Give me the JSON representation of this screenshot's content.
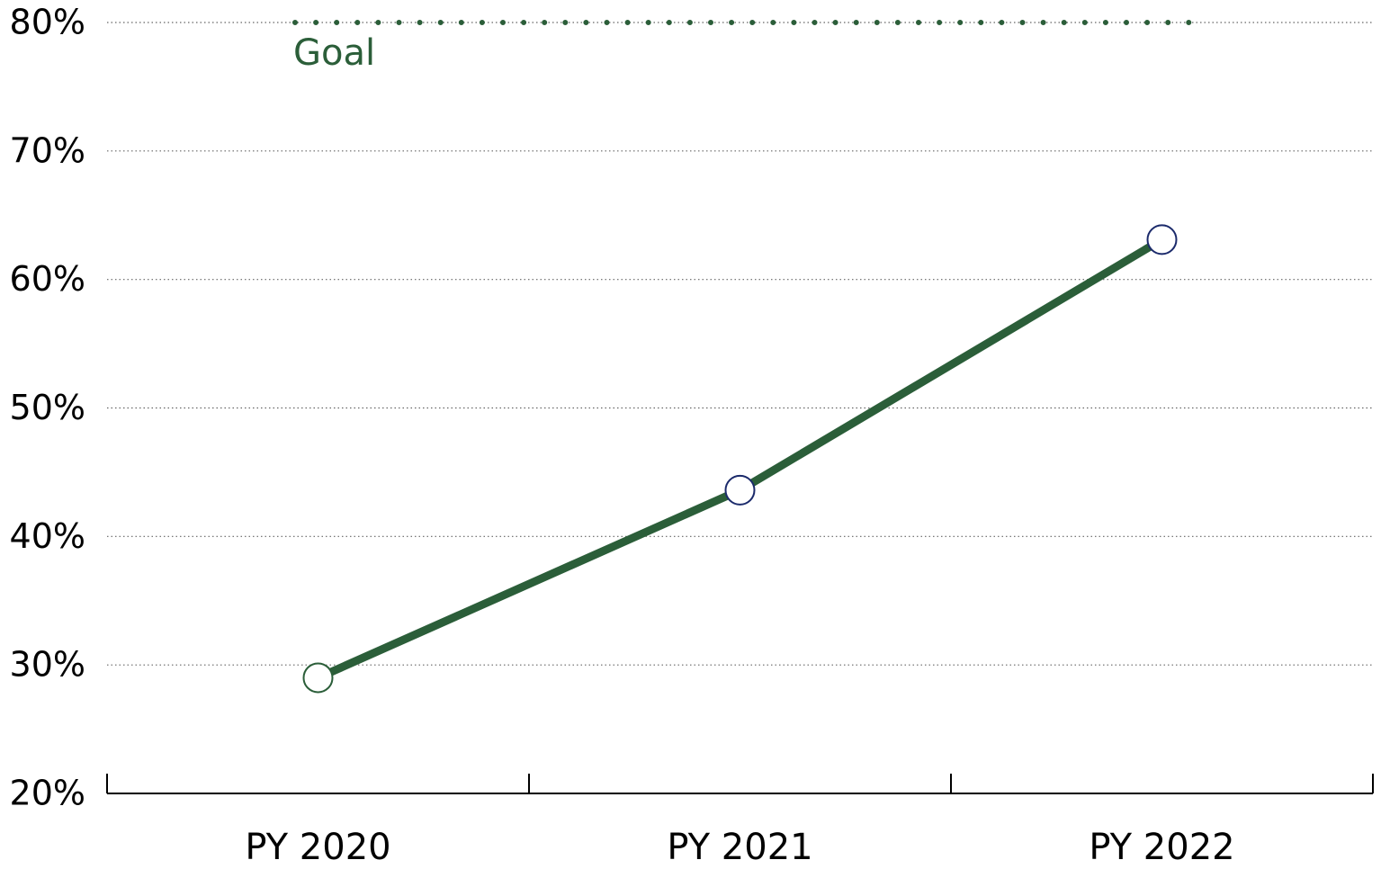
{
  "chart_data": {
    "type": "line",
    "categories": [
      "PY 2020",
      "PY 2021",
      "PY 2022"
    ],
    "series": [
      {
        "color": "#2b5e39",
        "marker_edgecolors": [
          "#2b5e39",
          "#1b2a6b",
          "#1b2a6b"
        ],
        "values": [
          29,
          43.6,
          63.1
        ]
      }
    ],
    "ylim": [
      20,
      80
    ],
    "yticks": [
      {
        "value": 20,
        "label": "20%"
      },
      {
        "value": 30,
        "label": "30%"
      },
      {
        "value": 40,
        "label": "40%"
      },
      {
        "value": 50,
        "label": "50%"
      },
      {
        "value": 60,
        "label": "60%"
      },
      {
        "value": 70,
        "label": "70%"
      },
      {
        "value": 80,
        "label": "80%"
      }
    ],
    "grid": true,
    "annotations": [
      {
        "text": "Goal",
        "y": 80,
        "color": "#2b5e39"
      }
    ]
  }
}
